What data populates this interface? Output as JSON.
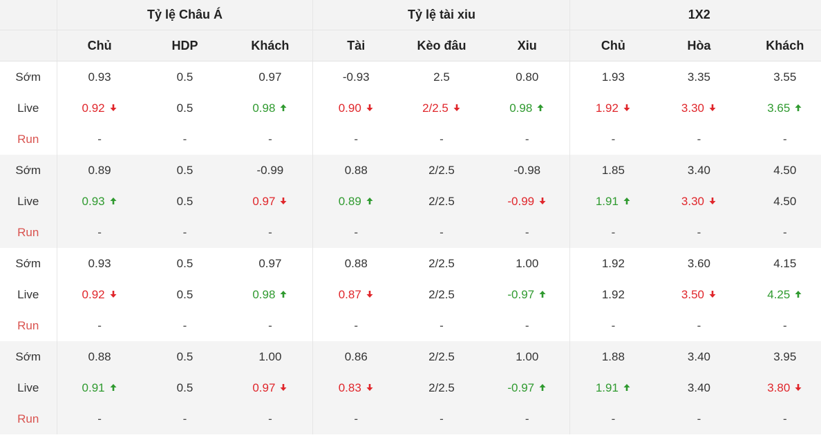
{
  "header": {
    "groups": [
      {
        "id": "asia",
        "label": "Tỷ lệ Châu Á"
      },
      {
        "id": "ou",
        "label": "Tỷ lệ tài xiu"
      },
      {
        "id": "x12",
        "label": "1X2"
      }
    ],
    "columns": [
      "Chủ",
      "HDP",
      "Khách",
      "Tài",
      "Kèo đâu",
      "Xiu",
      "Chủ",
      "Hòa",
      "Khách"
    ]
  },
  "colors": {
    "up": "#2f9a2f",
    "down": "#e0262b",
    "run_label": "#d9534f",
    "shade": "#f4f4f4"
  },
  "icons": {
    "up": "arrow-up-icon",
    "down": "arrow-down-icon"
  },
  "blocks": [
    {
      "rows": [
        {
          "label": "Sớm",
          "cells": [
            {
              "v": "0.93"
            },
            {
              "v": "0.5"
            },
            {
              "v": "0.97"
            },
            {
              "v": "-0.93"
            },
            {
              "v": "2.5"
            },
            {
              "v": "0.80"
            },
            {
              "v": "1.93"
            },
            {
              "v": "3.35"
            },
            {
              "v": "3.55"
            }
          ]
        },
        {
          "label": "Live",
          "cells": [
            {
              "v": "0.92",
              "t": "down"
            },
            {
              "v": "0.5"
            },
            {
              "v": "0.98",
              "t": "up"
            },
            {
              "v": "0.90",
              "t": "down"
            },
            {
              "v": "2/2.5",
              "t": "down"
            },
            {
              "v": "0.98",
              "t": "up"
            },
            {
              "v": "1.92",
              "t": "down"
            },
            {
              "v": "3.30",
              "t": "down"
            },
            {
              "v": "3.65",
              "t": "up"
            }
          ]
        },
        {
          "label": "Run",
          "cells": [
            {
              "v": "-"
            },
            {
              "v": "-"
            },
            {
              "v": "-"
            },
            {
              "v": "-"
            },
            {
              "v": "-"
            },
            {
              "v": "-"
            },
            {
              "v": "-"
            },
            {
              "v": "-"
            },
            {
              "v": "-"
            }
          ]
        }
      ]
    },
    {
      "rows": [
        {
          "label": "Sớm",
          "cells": [
            {
              "v": "0.89"
            },
            {
              "v": "0.5"
            },
            {
              "v": "-0.99"
            },
            {
              "v": "0.88"
            },
            {
              "v": "2/2.5"
            },
            {
              "v": "-0.98"
            },
            {
              "v": "1.85"
            },
            {
              "v": "3.40"
            },
            {
              "v": "4.50"
            }
          ]
        },
        {
          "label": "Live",
          "cells": [
            {
              "v": "0.93",
              "t": "up"
            },
            {
              "v": "0.5"
            },
            {
              "v": "0.97",
              "t": "down"
            },
            {
              "v": "0.89",
              "t": "up"
            },
            {
              "v": "2/2.5"
            },
            {
              "v": "-0.99",
              "t": "down"
            },
            {
              "v": "1.91",
              "t": "up"
            },
            {
              "v": "3.30",
              "t": "down"
            },
            {
              "v": "4.50"
            }
          ]
        },
        {
          "label": "Run",
          "cells": [
            {
              "v": "-"
            },
            {
              "v": "-"
            },
            {
              "v": "-"
            },
            {
              "v": "-"
            },
            {
              "v": "-"
            },
            {
              "v": "-"
            },
            {
              "v": "-"
            },
            {
              "v": "-"
            },
            {
              "v": "-"
            }
          ]
        }
      ]
    },
    {
      "rows": [
        {
          "label": "Sớm",
          "cells": [
            {
              "v": "0.93"
            },
            {
              "v": "0.5"
            },
            {
              "v": "0.97"
            },
            {
              "v": "0.88"
            },
            {
              "v": "2/2.5"
            },
            {
              "v": "1.00"
            },
            {
              "v": "1.92"
            },
            {
              "v": "3.60"
            },
            {
              "v": "4.15"
            }
          ]
        },
        {
          "label": "Live",
          "cells": [
            {
              "v": "0.92",
              "t": "down"
            },
            {
              "v": "0.5"
            },
            {
              "v": "0.98",
              "t": "up"
            },
            {
              "v": "0.87",
              "t": "down"
            },
            {
              "v": "2/2.5"
            },
            {
              "v": "-0.97",
              "t": "up"
            },
            {
              "v": "1.92"
            },
            {
              "v": "3.50",
              "t": "down"
            },
            {
              "v": "4.25",
              "t": "up"
            }
          ]
        },
        {
          "label": "Run",
          "cells": [
            {
              "v": "-"
            },
            {
              "v": "-"
            },
            {
              "v": "-"
            },
            {
              "v": "-"
            },
            {
              "v": "-"
            },
            {
              "v": "-"
            },
            {
              "v": "-"
            },
            {
              "v": "-"
            },
            {
              "v": "-"
            }
          ]
        }
      ]
    },
    {
      "rows": [
        {
          "label": "Sớm",
          "cells": [
            {
              "v": "0.88"
            },
            {
              "v": "0.5"
            },
            {
              "v": "1.00"
            },
            {
              "v": "0.86"
            },
            {
              "v": "2/2.5"
            },
            {
              "v": "1.00"
            },
            {
              "v": "1.88"
            },
            {
              "v": "3.40"
            },
            {
              "v": "3.95"
            }
          ]
        },
        {
          "label": "Live",
          "cells": [
            {
              "v": "0.91",
              "t": "up"
            },
            {
              "v": "0.5"
            },
            {
              "v": "0.97",
              "t": "down"
            },
            {
              "v": "0.83",
              "t": "down"
            },
            {
              "v": "2/2.5"
            },
            {
              "v": "-0.97",
              "t": "up"
            },
            {
              "v": "1.91",
              "t": "up"
            },
            {
              "v": "3.40"
            },
            {
              "v": "3.80",
              "t": "down"
            }
          ]
        },
        {
          "label": "Run",
          "cells": [
            {
              "v": "-"
            },
            {
              "v": "-"
            },
            {
              "v": "-"
            },
            {
              "v": "-"
            },
            {
              "v": "-"
            },
            {
              "v": "-"
            },
            {
              "v": "-"
            },
            {
              "v": "-"
            },
            {
              "v": "-"
            }
          ]
        }
      ]
    }
  ]
}
